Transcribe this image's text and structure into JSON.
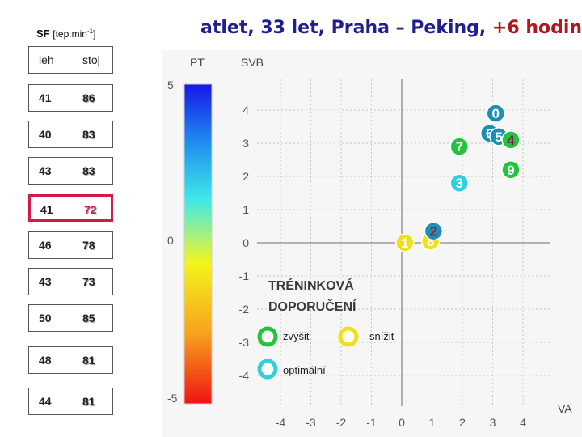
{
  "header": {
    "title_main": "atlet, 33 let, Praha – Peking, ",
    "title_highlight": "+6 hodin",
    "sf_label": "SF",
    "sf_unit_pre": "[tep.min",
    "sf_unit_sup": "-1",
    "sf_unit_post": "]"
  },
  "sf_table": {
    "headers": [
      "leh",
      "stoj"
    ],
    "rows": [
      {
        "leh": "41",
        "stoj": "86",
        "highlight": false
      },
      {
        "leh": "40",
        "stoj": "83",
        "highlight": false
      },
      {
        "leh": "43",
        "stoj": "83",
        "highlight": false
      },
      {
        "leh": "41",
        "stoj": "72",
        "highlight": true
      },
      {
        "leh": "46",
        "stoj": "78",
        "highlight": false
      },
      {
        "leh": "43",
        "stoj": "73",
        "highlight": false
      },
      {
        "leh": "50",
        "stoj": "85",
        "highlight": false
      },
      {
        "leh": "48",
        "stoj": "81",
        "highlight": false
      },
      {
        "leh": "44",
        "stoj": "81",
        "highlight": false
      }
    ]
  },
  "scale": {
    "pt_label": "PT",
    "svb_label": "SVB",
    "va_label": "VA",
    "pt_ticks": [
      "5",
      "0",
      "-5"
    ],
    "svb_ticks": [
      "4",
      "3",
      "2",
      "1",
      "0",
      "-1",
      "-2",
      "-3",
      "-4"
    ],
    "va_ticks": [
      "-4",
      "-3",
      "-2",
      "-1",
      "0",
      "1",
      "2",
      "3",
      "4"
    ]
  },
  "chart_data": {
    "type": "scatter",
    "xlabel": "VA",
    "ylabel": "SVB",
    "xlim": [
      -4.5,
      4.5
    ],
    "ylim": [
      -5,
      4.5
    ],
    "points": [
      {
        "label": "0",
        "x": 3.1,
        "y": 3.9,
        "color": "#1e8fb4",
        "label_color": "#ffffff"
      },
      {
        "label": "6",
        "x": 2.9,
        "y": 3.3,
        "color": "#1e8fb4",
        "label_color": "#ffffff"
      },
      {
        "label": "5",
        "x": 3.2,
        "y": 3.2,
        "color": "#1e8fb4",
        "label_color": "#ffffff"
      },
      {
        "label": "4",
        "x": 3.6,
        "y": 3.1,
        "color": "#22c43a",
        "label_color": "#7a1f5a"
      },
      {
        "label": "9",
        "x": 3.6,
        "y": 2.2,
        "color": "#22c43a",
        "label_color": "#ffffff"
      },
      {
        "label": "7",
        "x": 1.9,
        "y": 2.9,
        "color": "#22c43a",
        "label_color": "#ffffff"
      },
      {
        "label": "3",
        "x": 1.9,
        "y": 1.8,
        "color": "#2ed0dc",
        "label_color": "#ffffff"
      },
      {
        "label": "1",
        "x": 0.1,
        "y": 0.0,
        "color": "#f0e01a",
        "label_color": "#ffffff"
      },
      {
        "label": "8",
        "x": 0.95,
        "y": 0.05,
        "color": "#f0e01a",
        "label_color": "#ffffff"
      },
      {
        "label": "2",
        "x": 1.05,
        "y": 0.35,
        "color": "#1e8fb4",
        "label_color": "#b01820"
      }
    ]
  },
  "legend": {
    "title_line1": "TRÉNINKOVÁ",
    "title_line2": "DOPORUČENÍ",
    "items": [
      {
        "label": "zvýšit",
        "color": "#22c43a"
      },
      {
        "label": "snížit",
        "color": "#f0e01a"
      },
      {
        "label": "optimální",
        "color": "#2ed0dc"
      }
    ]
  }
}
